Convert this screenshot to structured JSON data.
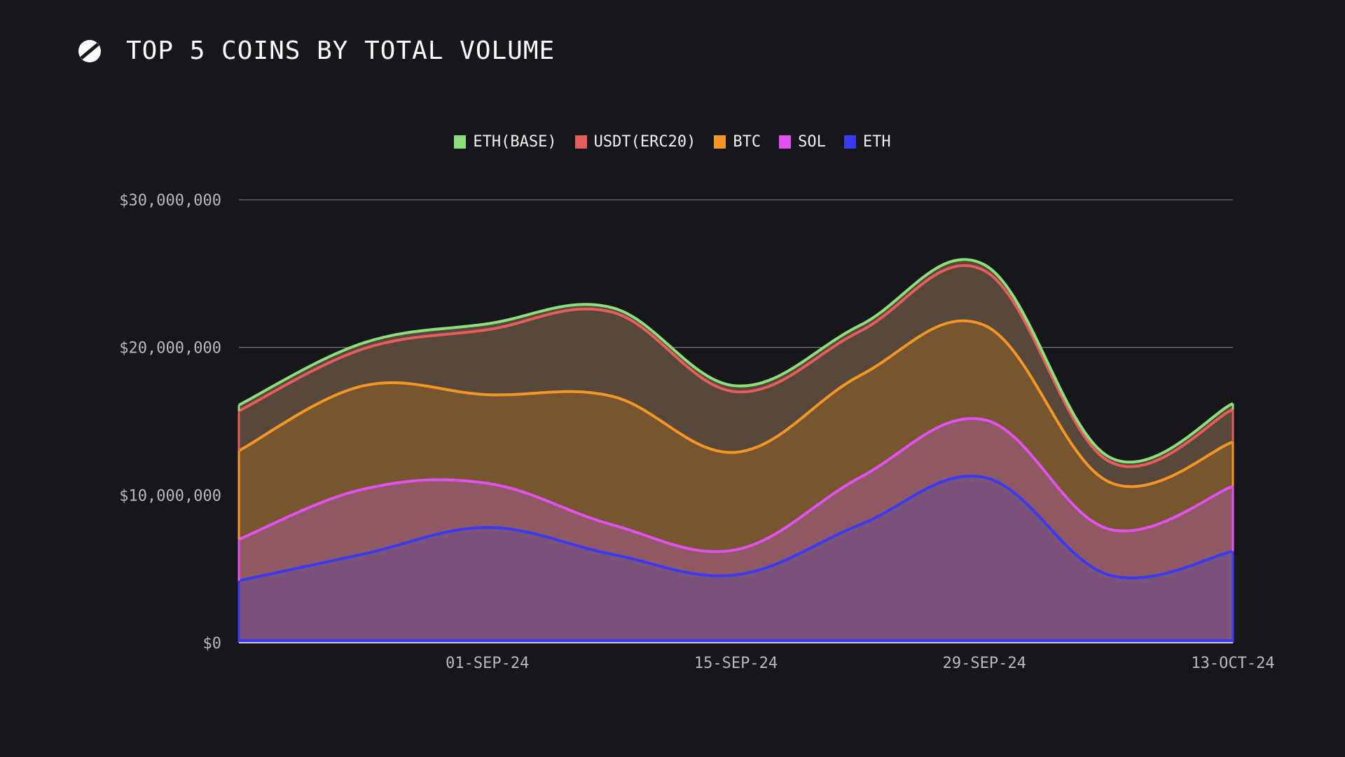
{
  "header": {
    "title": "TOP 5 COINS BY TOTAL VOLUME",
    "logo_icon": "slashed-s-logo-icon"
  },
  "colors": {
    "background": "#16171b",
    "gridline": "#8a8a8a",
    "axis_text": "#b9b9b9"
  },
  "chart_data": {
    "type": "area",
    "stacked": true,
    "title": "TOP 5 COINS BY TOTAL VOLUME",
    "x": [
      "18-AUG-24",
      "25-AUG-24",
      "01-SEP-24",
      "08-SEP-24",
      "15-SEP-24",
      "22-SEP-24",
      "29-SEP-24",
      "06-OCT-24",
      "13-OCT-24"
    ],
    "xticks": [
      "01-SEP-24",
      "15-SEP-24",
      "29-SEP-24",
      "13-OCT-24"
    ],
    "yticks": [
      {
        "value": 0,
        "label": "$0"
      },
      {
        "value": 10000000,
        "label": "$10,000,000"
      },
      {
        "value": 20000000,
        "label": "$20,000,000"
      },
      {
        "value": 30000000,
        "label": "$30,000,000"
      }
    ],
    "ylim": [
      0,
      30000000
    ],
    "grid": true,
    "legend_position": "top-center",
    "series": [
      {
        "name": "ETH",
        "color": "#3a3af5",
        "fill": "#7a527a",
        "values": [
          4200000,
          6000000,
          7800000,
          6000000,
          4600000,
          8000000,
          11200000,
          4600000,
          6200000
        ]
      },
      {
        "name": "SOL",
        "color": "#e052ef",
        "fill": "#8f5862",
        "values": [
          2800000,
          4400000,
          3000000,
          2000000,
          1700000,
          3200000,
          3900000,
          3100000,
          4400000
        ]
      },
      {
        "name": "BTC",
        "color": "#f39626",
        "fill": "#77552f",
        "values": [
          6000000,
          7000000,
          6000000,
          8700000,
          6600000,
          6900000,
          6400000,
          3200000,
          3000000
        ]
      },
      {
        "name": "USDT(ERC20)",
        "color": "#e55d5d",
        "fill": "#574839",
        "values": [
          2700000,
          2500000,
          4400000,
          5700000,
          4100000,
          3000000,
          3700000,
          1400000,
          2200000
        ]
      },
      {
        "name": "ETH(BASE)",
        "color": "#8be07a",
        "fill": "#574839",
        "values": [
          400000,
          400000,
          400000,
          300000,
          400000,
          400000,
          400000,
          300000,
          400000
        ]
      }
    ],
    "legend_order": [
      "ETH(BASE)",
      "USDT(ERC20)",
      "BTC",
      "SOL",
      "ETH"
    ]
  }
}
